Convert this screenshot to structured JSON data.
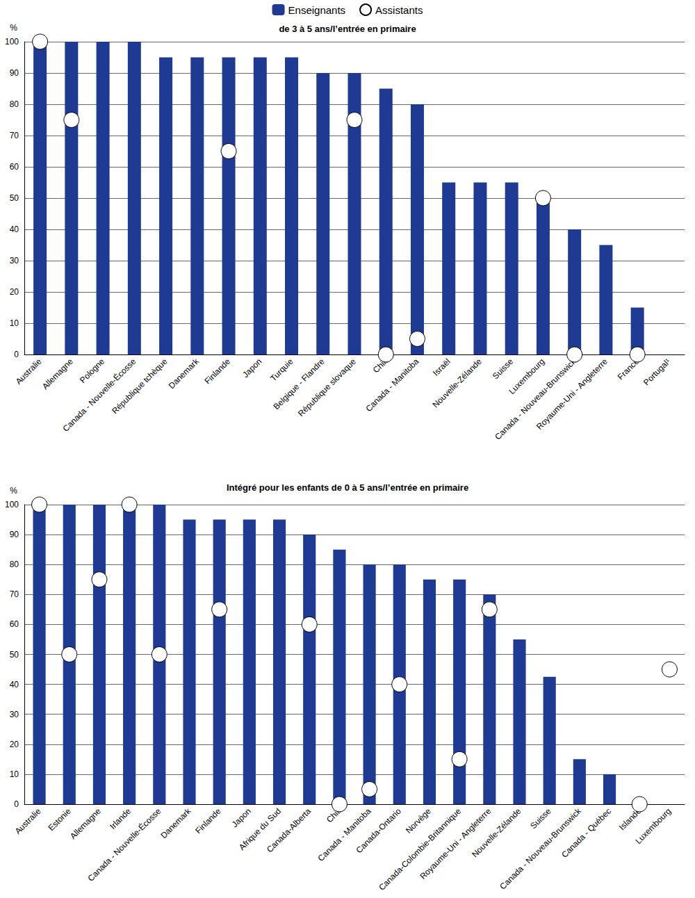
{
  "chart_data": [
    {
      "type": "bar",
      "title": "de 3 à 5 ans/l’entrée en primaire",
      "y_label": "%",
      "legend": "top",
      "grid": true,
      "ylim": [
        0,
        100
      ],
      "yticks": [
        0,
        10,
        20,
        30,
        40,
        50,
        60,
        70,
        80,
        90,
        100
      ],
      "categories": [
        "Australie",
        "Allemagne",
        "Pologne",
        "Canada - Nouvelle-Écosse",
        "République tchèque",
        "Danemark",
        "Finlande",
        "Japon",
        "Turquie",
        "Belgique - Flandre",
        "République slovaque",
        "Chili",
        "Canada - Manitoba",
        "Israël",
        "Nouvelle-Zélande",
        "Suisse",
        "Luxembourg",
        "Canada - Nouveau-Brunswick",
        "Royaume-Uni - Angleterre",
        "France",
        "Portugal¹"
      ],
      "series": [
        {
          "name": "Enseignants",
          "type": "bar",
          "color": "#1f3a93",
          "values": [
            100,
            100,
            100,
            100,
            95,
            95,
            95,
            95,
            95,
            90,
            90,
            85,
            80,
            55,
            55,
            55,
            50,
            40,
            35,
            15,
            null
          ]
        },
        {
          "name": "Assistants",
          "type": "scatter",
          "marker": "circle",
          "color": "#ffffff",
          "values": [
            100,
            75,
            null,
            null,
            null,
            null,
            65,
            null,
            null,
            null,
            75,
            0,
            5,
            null,
            null,
            null,
            50,
            0,
            null,
            0,
            null
          ]
        }
      ]
    },
    {
      "type": "bar",
      "title": "Intégré pour les enfants de 0 à 5 ans/l’entrée en primaire",
      "y_label": "%",
      "grid": true,
      "ylim": [
        0,
        100
      ],
      "yticks": [
        0,
        10,
        20,
        30,
        40,
        50,
        60,
        70,
        80,
        90,
        100
      ],
      "categories": [
        "Australie",
        "Estonie",
        "Allemagne",
        "Irlande",
        "Canada - Nouvelle-Écosse",
        "Danemark",
        "Finlande",
        "Japon",
        "Afrique du Sud",
        "Canada-Alberta",
        "Chili",
        "Canada - Manitoba",
        "Canada-Ontario",
        "Norvège",
        "Canada-Colombie-Britannique",
        "Royaume-Uni - Angleterre",
        "Nouvelle-Zélande",
        "Suisse",
        "Canada - Nouveau-Brunswick",
        "Canada - Québec",
        "Islande",
        "Luxembourg"
      ],
      "series": [
        {
          "name": "Enseignants",
          "type": "bar",
          "color": "#1f3a93",
          "values": [
            100,
            100,
            100,
            100,
            100,
            95,
            95,
            95,
            95,
            90,
            85,
            80,
            80,
            75,
            75,
            70,
            55,
            42.5,
            15,
            10,
            null,
            null
          ]
        },
        {
          "name": "Assistants",
          "type": "scatter",
          "marker": "circle",
          "color": "#ffffff",
          "values": [
            100,
            50,
            75,
            100,
            50,
            null,
            65,
            null,
            null,
            60,
            0,
            5,
            40,
            null,
            15,
            65,
            null,
            null,
            null,
            null,
            0,
            45
          ]
        }
      ]
    }
  ]
}
